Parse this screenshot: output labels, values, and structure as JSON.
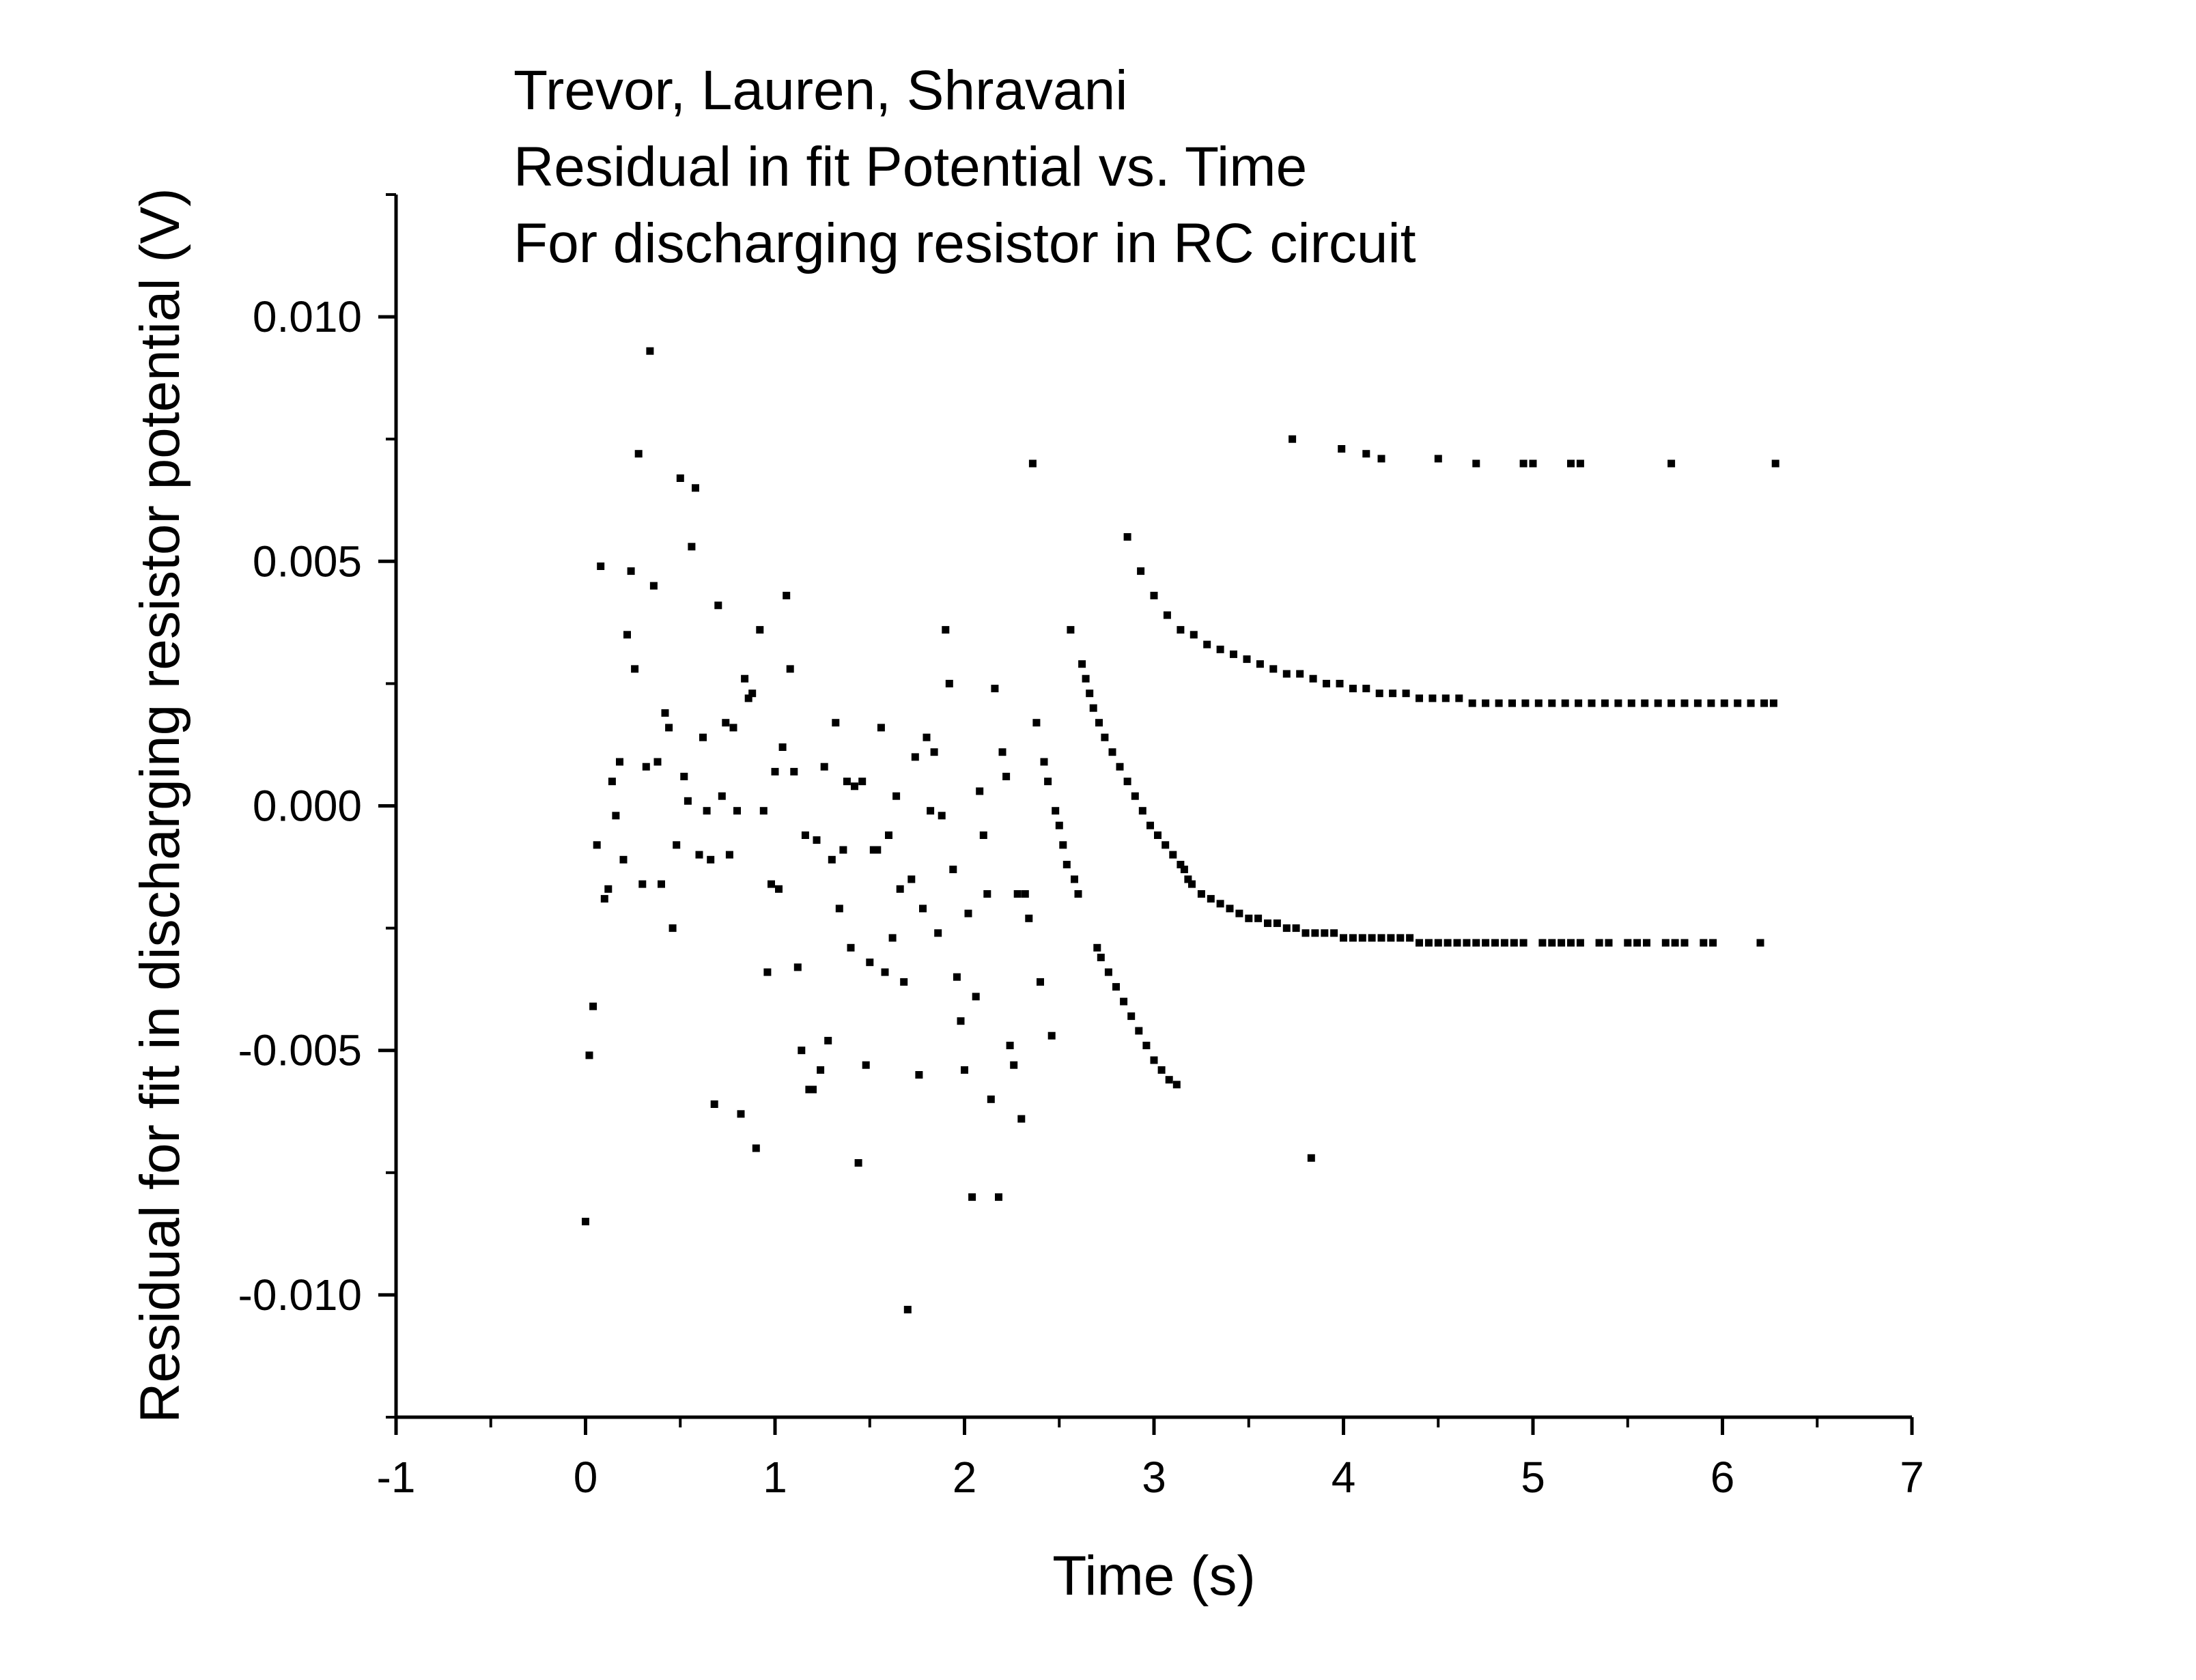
{
  "chart_data": {
    "type": "scatter",
    "title_lines": [
      "Trevor, Lauren, Shravani",
      "Residual in fit Potential vs. Time",
      "For discharging resistor in RC circuit"
    ],
    "xlabel": "Time (s)",
    "ylabel": "Residual for fit in discharging resistor potential (V)",
    "xlim": [
      -1,
      7
    ],
    "ylim": [
      -0.0125,
      0.0125
    ],
    "x_ticks": [
      -1,
      0,
      1,
      2,
      3,
      4,
      5,
      6,
      7
    ],
    "x_tick_labels": [
      "-1",
      "0",
      "1",
      "2",
      "3",
      "4",
      "5",
      "6",
      "7"
    ],
    "y_ticks": [
      -0.01,
      -0.005,
      0,
      0.005,
      0.01
    ],
    "y_tick_labels": [
      "-0.010",
      "-0.005",
      "0.000",
      "0.005",
      "0.010"
    ],
    "grid": false,
    "marker_color": "#000000",
    "points": [
      [
        0.0,
        -0.0085
      ],
      [
        0.02,
        -0.0051
      ],
      [
        0.04,
        -0.0041
      ],
      [
        0.06,
        -0.0008
      ],
      [
        0.08,
        0.0049
      ],
      [
        0.1,
        -0.0019
      ],
      [
        0.12,
        -0.0017
      ],
      [
        0.14,
        0.0005
      ],
      [
        0.16,
        -0.0002
      ],
      [
        0.18,
        0.0009
      ],
      [
        0.2,
        -0.0011
      ],
      [
        0.22,
        0.0035
      ],
      [
        0.24,
        0.0048
      ],
      [
        0.26,
        0.0028
      ],
      [
        0.28,
        0.0072
      ],
      [
        0.3,
        -0.0016
      ],
      [
        0.32,
        0.0008
      ],
      [
        0.34,
        0.0093
      ],
      [
        0.36,
        0.0045
      ],
      [
        0.38,
        0.0009
      ],
      [
        0.4,
        -0.0016
      ],
      [
        0.42,
        0.0019
      ],
      [
        0.44,
        0.0016
      ],
      [
        0.46,
        -0.0025
      ],
      [
        0.48,
        -0.0008
      ],
      [
        0.5,
        0.0067
      ],
      [
        0.52,
        0.0006
      ],
      [
        0.54,
        0.0001
      ],
      [
        0.56,
        0.0053
      ],
      [
        0.58,
        0.0065
      ],
      [
        0.6,
        -0.001
      ],
      [
        0.62,
        0.0014
      ],
      [
        0.64,
        -0.0001
      ],
      [
        0.66,
        -0.0011
      ],
      [
        0.68,
        -0.0061
      ],
      [
        0.7,
        0.0041
      ],
      [
        0.72,
        0.0002
      ],
      [
        0.74,
        0.0017
      ],
      [
        0.76,
        -0.001
      ],
      [
        0.78,
        0.0016
      ],
      [
        0.8,
        -0.0001
      ],
      [
        0.82,
        -0.0063
      ],
      [
        0.84,
        0.0026
      ],
      [
        0.86,
        0.0022
      ],
      [
        0.88,
        0.0023
      ],
      [
        0.9,
        -0.007
      ],
      [
        0.92,
        0.0036
      ],
      [
        0.94,
        -0.0001
      ],
      [
        0.96,
        -0.0034
      ],
      [
        0.98,
        -0.0016
      ],
      [
        1.0,
        0.0007
      ],
      [
        1.02,
        -0.0017
      ],
      [
        1.04,
        0.0012
      ],
      [
        1.06,
        0.0043
      ],
      [
        1.08,
        0.0028
      ],
      [
        1.1,
        0.0007
      ],
      [
        1.12,
        -0.0033
      ],
      [
        1.14,
        -0.005
      ],
      [
        1.16,
        -0.0006
      ],
      [
        1.18,
        -0.0058
      ],
      [
        1.2,
        -0.0058
      ],
      [
        1.22,
        -0.0007
      ],
      [
        1.24,
        -0.0054
      ],
      [
        1.26,
        0.0008
      ],
      [
        1.28,
        -0.0048
      ],
      [
        1.3,
        -0.0011
      ],
      [
        1.32,
        0.0017
      ],
      [
        1.34,
        -0.0021
      ],
      [
        1.36,
        -0.0009
      ],
      [
        1.38,
        0.0005
      ],
      [
        1.4,
        -0.0029
      ],
      [
        1.42,
        0.0004
      ],
      [
        1.44,
        -0.0073
      ],
      [
        1.46,
        0.0005
      ],
      [
        1.48,
        -0.0053
      ],
      [
        1.5,
        -0.0032
      ],
      [
        1.52,
        -0.0009
      ],
      [
        1.54,
        -0.0009
      ],
      [
        1.56,
        0.0016
      ],
      [
        1.58,
        -0.0034
      ],
      [
        1.6,
        -0.0006
      ],
      [
        1.62,
        -0.0027
      ],
      [
        1.64,
        0.0002
      ],
      [
        1.66,
        -0.0017
      ],
      [
        1.68,
        -0.0036
      ],
      [
        1.7,
        -0.0103
      ],
      [
        1.72,
        -0.0015
      ],
      [
        1.74,
        0.001
      ],
      [
        1.76,
        -0.0055
      ],
      [
        1.78,
        -0.0021
      ],
      [
        1.8,
        0.0014
      ],
      [
        1.82,
        -0.0001
      ],
      [
        1.84,
        0.0011
      ],
      [
        1.86,
        -0.0026
      ],
      [
        1.88,
        -0.0002
      ],
      [
        1.9,
        0.0036
      ],
      [
        1.92,
        0.0025
      ],
      [
        1.94,
        -0.0013
      ],
      [
        1.96,
        -0.0035
      ],
      [
        1.98,
        -0.0044
      ],
      [
        2.0,
        -0.0054
      ],
      [
        2.02,
        -0.0022
      ],
      [
        2.04,
        -0.008
      ],
      [
        2.06,
        -0.0039
      ],
      [
        2.08,
        0.0003
      ],
      [
        2.1,
        -0.0006
      ],
      [
        2.12,
        -0.0018
      ],
      [
        2.14,
        -0.006
      ],
      [
        2.16,
        0.0024
      ],
      [
        2.18,
        -0.008
      ],
      [
        2.2,
        0.0011
      ],
      [
        2.22,
        0.0006
      ],
      [
        2.24,
        -0.0049
      ],
      [
        2.26,
        -0.0053
      ],
      [
        2.28,
        -0.0018
      ],
      [
        2.3,
        -0.0064
      ],
      [
        2.32,
        -0.0018
      ],
      [
        2.34,
        -0.0023
      ],
      [
        2.36,
        0.007
      ],
      [
        2.38,
        0.0017
      ],
      [
        2.4,
        -0.0036
      ],
      [
        2.42,
        0.0009
      ],
      [
        2.44,
        0.0005
      ],
      [
        2.46,
        -0.0047
      ],
      [
        2.48,
        -0.0001
      ],
      [
        2.5,
        -0.0004
      ],
      [
        2.52,
        -0.0008
      ],
      [
        2.54,
        -0.0012
      ],
      [
        2.56,
        0.0036
      ],
      [
        2.58,
        -0.0015
      ],
      [
        2.6,
        -0.0018
      ],
      [
        2.62,
        0.0029
      ],
      [
        2.64,
        0.0026
      ],
      [
        2.66,
        0.0023
      ],
      [
        2.68,
        0.002
      ],
      [
        2.7,
        -0.0029
      ],
      [
        2.71,
        0.0017
      ],
      [
        2.72,
        -0.0031
      ],
      [
        2.74,
        0.0014
      ],
      [
        2.76,
        -0.0034
      ],
      [
        2.78,
        0.0011
      ],
      [
        2.8,
        -0.0037
      ],
      [
        2.82,
        0.0008
      ],
      [
        2.84,
        -0.004
      ],
      [
        2.86,
        0.0005
      ],
      [
        2.88,
        -0.0043
      ],
      [
        2.9,
        0.0002
      ],
      [
        2.92,
        -0.0046
      ],
      [
        2.94,
        -0.0001
      ],
      [
        2.96,
        -0.0049
      ],
      [
        2.98,
        -0.0004
      ],
      [
        3.0,
        -0.0052
      ],
      [
        3.02,
        -0.0006
      ],
      [
        3.04,
        -0.0054
      ],
      [
        3.06,
        -0.0008
      ],
      [
        3.08,
        -0.0056
      ],
      [
        3.1,
        -0.001
      ],
      [
        3.12,
        -0.0057
      ],
      [
        3.14,
        -0.0012
      ],
      [
        3.16,
        -0.0013
      ],
      [
        3.18,
        -0.0015
      ],
      [
        3.2,
        -0.0016
      ],
      [
        3.25,
        -0.0018
      ],
      [
        3.3,
        -0.0019
      ],
      [
        3.35,
        -0.002
      ],
      [
        3.4,
        -0.0021
      ],
      [
        3.45,
        -0.0022
      ],
      [
        3.5,
        -0.0023
      ],
      [
        3.55,
        -0.0023
      ],
      [
        3.6,
        -0.0024
      ],
      [
        3.65,
        -0.0024
      ],
      [
        3.7,
        -0.0025
      ],
      [
        3.75,
        -0.0025
      ],
      [
        3.8,
        -0.0026
      ],
      [
        3.85,
        -0.0026
      ],
      [
        3.9,
        -0.0026
      ],
      [
        3.95,
        -0.0026
      ],
      [
        4.0,
        -0.0027
      ],
      [
        4.05,
        -0.0027
      ],
      [
        4.1,
        -0.0027
      ],
      [
        4.15,
        -0.0027
      ],
      [
        4.2,
        -0.0027
      ],
      [
        4.25,
        -0.0027
      ],
      [
        4.3,
        -0.0027
      ],
      [
        4.35,
        -0.0027
      ],
      [
        4.4,
        -0.0028
      ],
      [
        4.45,
        -0.0028
      ],
      [
        4.5,
        -0.0028
      ],
      [
        4.55,
        -0.0028
      ],
      [
        4.6,
        -0.0028
      ],
      [
        4.65,
        -0.0028
      ],
      [
        4.7,
        -0.0028
      ],
      [
        4.75,
        -0.0028
      ],
      [
        4.8,
        -0.0028
      ],
      [
        4.85,
        -0.0028
      ],
      [
        4.9,
        -0.0028
      ],
      [
        4.95,
        -0.0028
      ],
      [
        5.05,
        -0.0028
      ],
      [
        5.1,
        -0.0028
      ],
      [
        5.15,
        -0.0028
      ],
      [
        5.2,
        -0.0028
      ],
      [
        5.25,
        -0.0028
      ],
      [
        5.35,
        -0.0028
      ],
      [
        5.4,
        -0.0028
      ],
      [
        5.5,
        -0.0028
      ],
      [
        5.55,
        -0.0028
      ],
      [
        5.6,
        -0.0028
      ],
      [
        5.7,
        -0.0028
      ],
      [
        5.75,
        -0.0028
      ],
      [
        5.8,
        -0.0028
      ],
      [
        5.9,
        -0.0028
      ],
      [
        5.95,
        -0.0028
      ],
      [
        6.2,
        -0.0028
      ],
      [
        2.86,
        0.0055
      ],
      [
        2.93,
        0.0048
      ],
      [
        3.0,
        0.0043
      ],
      [
        3.07,
        0.0039
      ],
      [
        3.14,
        0.0036
      ],
      [
        3.21,
        0.0035
      ],
      [
        3.28,
        0.0033
      ],
      [
        3.35,
        0.0032
      ],
      [
        3.42,
        0.0031
      ],
      [
        3.49,
        0.003
      ],
      [
        3.56,
        0.0029
      ],
      [
        3.63,
        0.0028
      ],
      [
        3.7,
        0.0027
      ],
      [
        3.77,
        0.0027
      ],
      [
        3.84,
        0.0026
      ],
      [
        3.91,
        0.0025
      ],
      [
        3.98,
        0.0025
      ],
      [
        4.05,
        0.0024
      ],
      [
        4.12,
        0.0024
      ],
      [
        4.19,
        0.0023
      ],
      [
        4.26,
        0.0023
      ],
      [
        4.33,
        0.0023
      ],
      [
        4.4,
        0.0022
      ],
      [
        4.47,
        0.0022
      ],
      [
        4.54,
        0.0022
      ],
      [
        4.61,
        0.0022
      ],
      [
        4.68,
        0.0021
      ],
      [
        4.75,
        0.0021
      ],
      [
        4.82,
        0.0021
      ],
      [
        4.89,
        0.0021
      ],
      [
        4.96,
        0.0021
      ],
      [
        5.03,
        0.0021
      ],
      [
        5.1,
        0.0021
      ],
      [
        5.17,
        0.0021
      ],
      [
        5.24,
        0.0021
      ],
      [
        5.31,
        0.0021
      ],
      [
        5.38,
        0.0021
      ],
      [
        5.45,
        0.0021
      ],
      [
        5.52,
        0.0021
      ],
      [
        5.59,
        0.0021
      ],
      [
        5.66,
        0.0021
      ],
      [
        5.73,
        0.0021
      ],
      [
        5.8,
        0.0021
      ],
      [
        5.87,
        0.0021
      ],
      [
        5.94,
        0.0021
      ],
      [
        6.01,
        0.0021
      ],
      [
        6.08,
        0.0021
      ],
      [
        6.15,
        0.0021
      ],
      [
        6.22,
        0.0021
      ],
      [
        6.27,
        0.0021
      ],
      [
        3.73,
        0.0075
      ],
      [
        3.99,
        0.0073
      ],
      [
        4.12,
        0.0072
      ],
      [
        4.2,
        0.0071
      ],
      [
        4.5,
        0.0071
      ],
      [
        4.7,
        0.007
      ],
      [
        4.95,
        0.007
      ],
      [
        5.0,
        0.007
      ],
      [
        5.2,
        0.007
      ],
      [
        5.25,
        0.007
      ],
      [
        5.73,
        0.007
      ],
      [
        6.28,
        0.007
      ],
      [
        3.83,
        -0.0072
      ]
    ]
  }
}
